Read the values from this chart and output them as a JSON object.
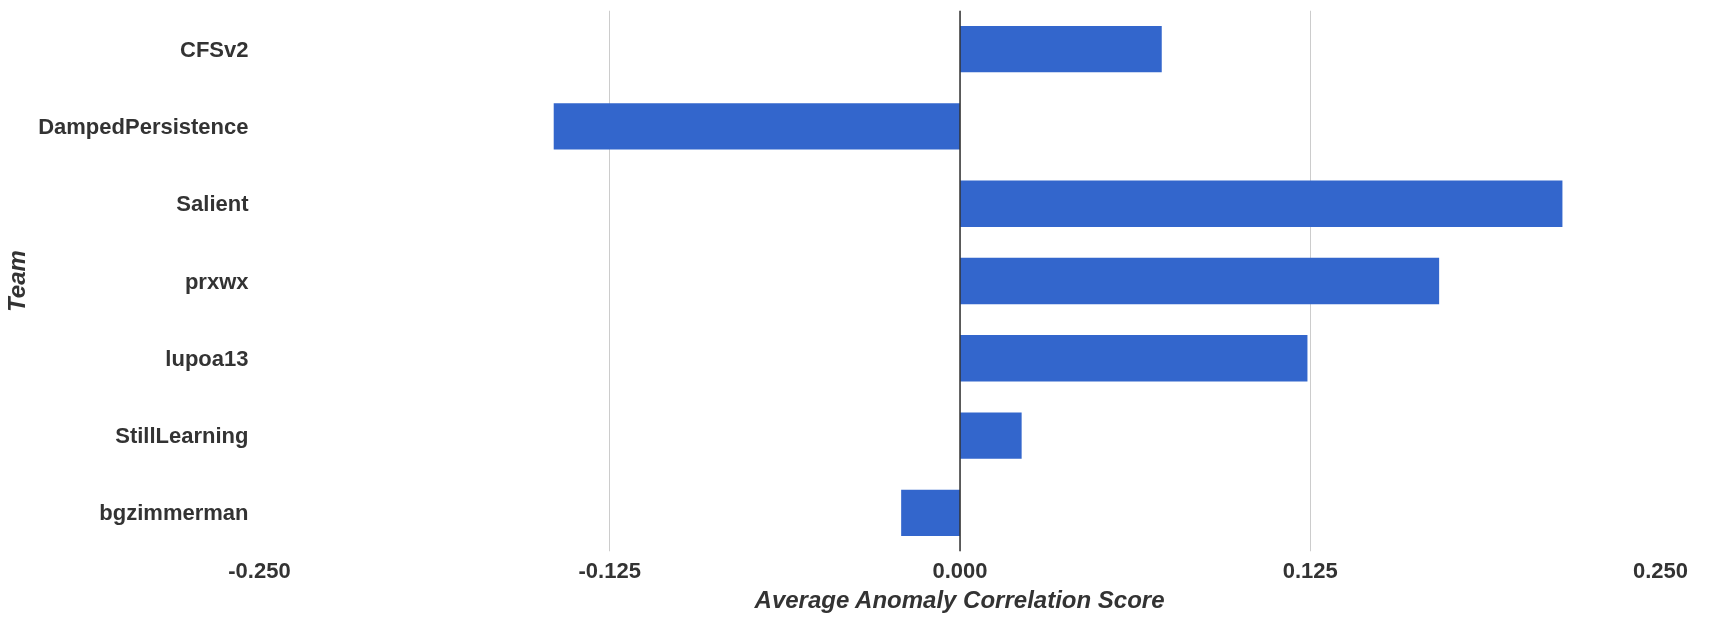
{
  "chart_data": {
    "type": "bar",
    "orientation": "horizontal",
    "xlabel": "Average Anomaly Correlation Score",
    "ylabel": "Team",
    "categories": [
      "CFSv2",
      "DampedPersistence",
      "Salient",
      "prxwx",
      "lupoa13",
      "StillLearning",
      "bgzimmerman"
    ],
    "values": [
      0.072,
      -0.145,
      0.215,
      0.171,
      0.124,
      0.022,
      -0.021
    ],
    "color": "#3366cc",
    "xlim": [
      -0.25,
      0.25
    ],
    "xticks": [
      {
        "value": -0.25,
        "label": "-0.250"
      },
      {
        "value": -0.125,
        "label": "-0.125"
      },
      {
        "value": 0,
        "label": "0.000"
      },
      {
        "value": 0.125,
        "label": "0.125"
      },
      {
        "value": 0.25,
        "label": "0.250"
      }
    ],
    "grid": "x"
  }
}
